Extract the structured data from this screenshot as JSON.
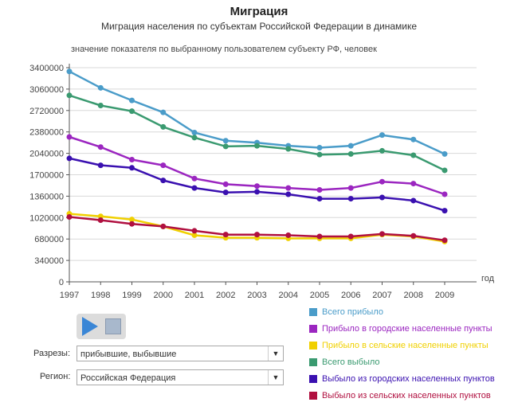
{
  "chart_data": {
    "type": "line",
    "title": "Миграция",
    "subtitle": "Миграция населения по субъектам Российской Федерации в динамике",
    "ylabel": "значение показателя по выбранному пользователем субъекту РФ, человек",
    "xlabel": "год",
    "ylim": [
      0,
      3400000
    ],
    "yticks": [
      "0",
      "340000",
      "680000",
      "1020000",
      "1360000",
      "1700000",
      "2040000",
      "2380000",
      "2720000",
      "3060000",
      "3400000"
    ],
    "x": [
      "1997",
      "1998",
      "1999",
      "2000",
      "2001",
      "2002",
      "2003",
      "2004",
      "2005",
      "2006",
      "2007",
      "2008",
      "2009"
    ],
    "grid": true,
    "legend_position": "bottom-right",
    "series": [
      {
        "name": "Всего прибыло",
        "color": "#4a9cc9",
        "values": [
          3340000,
          3080000,
          2880000,
          2690000,
          2370000,
          2240000,
          2210000,
          2160000,
          2130000,
          2160000,
          2330000,
          2260000,
          2030000
        ]
      },
      {
        "name": "Прибыло в городские населенные пункты",
        "color": "#9b26c0",
        "values": [
          2300000,
          2140000,
          1940000,
          1850000,
          1640000,
          1550000,
          1520000,
          1490000,
          1460000,
          1490000,
          1590000,
          1560000,
          1390000
        ]
      },
      {
        "name": "Прибыло в сельские населенные пункты",
        "color": "#f0d000",
        "values": [
          1080000,
          1040000,
          990000,
          880000,
          740000,
          700000,
          700000,
          690000,
          690000,
          690000,
          750000,
          720000,
          640000
        ]
      },
      {
        "name": "Всего выбыло",
        "color": "#3a9a70",
        "values": [
          2960000,
          2800000,
          2710000,
          2460000,
          2290000,
          2150000,
          2160000,
          2110000,
          2020000,
          2030000,
          2080000,
          2010000,
          1770000
        ]
      },
      {
        "name": "Выбыло из городских населенных пунктов",
        "color": "#3a10b0",
        "values": [
          1960000,
          1850000,
          1810000,
          1610000,
          1490000,
          1420000,
          1430000,
          1390000,
          1320000,
          1320000,
          1340000,
          1290000,
          1130000
        ]
      },
      {
        "name": "Выбыло из сельских населенных пунктов",
        "color": "#b01040",
        "values": [
          1030000,
          980000,
          920000,
          880000,
          810000,
          750000,
          750000,
          740000,
          720000,
          720000,
          760000,
          730000,
          660000
        ]
      }
    ]
  },
  "controls": {
    "filters": [
      {
        "label": "Разрезы:",
        "value": "прибывшие, выбывшие"
      },
      {
        "label": "Регион:",
        "value": "Российская Федерация"
      }
    ]
  }
}
